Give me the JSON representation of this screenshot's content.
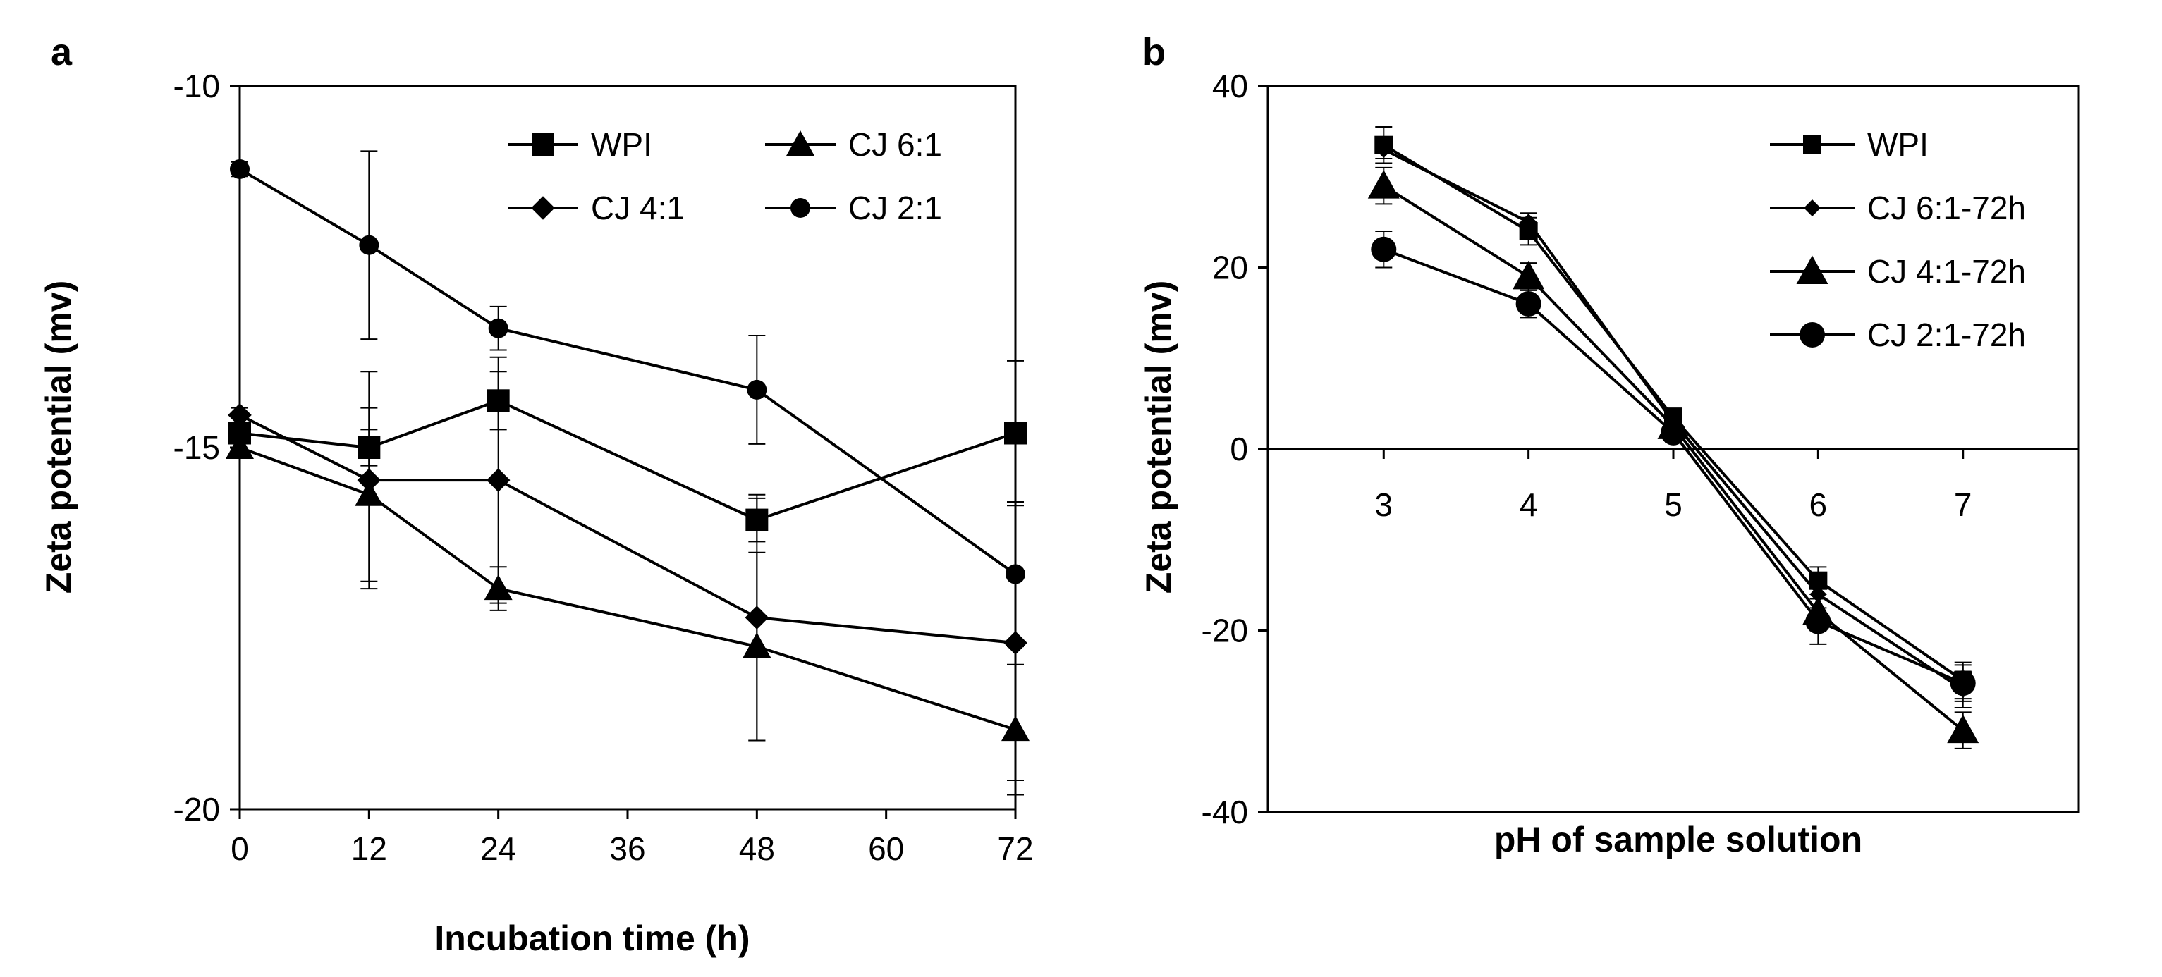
{
  "chart_data": [
    {
      "type": "line",
      "panel": "a",
      "xlabel": "Incubation time (h)",
      "ylabel": "Zeta potential (mv)",
      "xlim": [
        0,
        72
      ],
      "ylim": [
        -20,
        -10
      ],
      "x_ticks": [
        0,
        12,
        24,
        36,
        48,
        60,
        72
      ],
      "y_ticks": [
        -10,
        -15,
        -20
      ],
      "grid": false,
      "legend": {
        "placement": "top-right",
        "columns": 2
      },
      "x": [
        0,
        12,
        24,
        48,
        72
      ],
      "series": [
        {
          "name": "WPI",
          "marker": "square",
          "values": [
            -14.8,
            -15.0,
            -14.35,
            -16.0,
            -14.8
          ],
          "errors": [
            0.1,
            0.25,
            0.4,
            0.3,
            1.0
          ]
        },
        {
          "name": "CJ 6:1",
          "marker": "triangle",
          "values": [
            -15.0,
            -15.65,
            -16.95,
            -17.75,
            -18.9
          ],
          "errors": [
            0.1,
            1.2,
            0.3,
            1.3,
            0.9
          ]
        },
        {
          "name": "CJ 4:1",
          "marker": "diamond",
          "values": [
            -14.55,
            -15.45,
            -15.45,
            -17.35,
            -17.7
          ],
          "errors": [
            0.1,
            1.5,
            1.7,
            1.7,
            1.9
          ]
        },
        {
          "name": "CJ 2:1",
          "marker": "circle",
          "values": [
            -11.15,
            -12.2,
            -13.35,
            -14.2,
            -16.75
          ],
          "errors": [
            0.1,
            1.3,
            0.3,
            0.75,
            1.0
          ]
        }
      ]
    },
    {
      "type": "line",
      "panel": "b",
      "xlabel": "pH of sample solution",
      "ylabel": "Zeta potential (mv)",
      "xlim": [
        2.2,
        7.8
      ],
      "ylim": [
        -40,
        40
      ],
      "x_ticks": [
        3,
        4,
        5,
        6,
        7
      ],
      "y_ticks": [
        40,
        20,
        0,
        -20,
        -40
      ],
      "grid": false,
      "legend": {
        "placement": "top-right",
        "columns": 1
      },
      "x": [
        3,
        4,
        5,
        6,
        7
      ],
      "series": [
        {
          "name": "WPI",
          "marker": "square",
          "values": [
            33.5,
            24.0,
            3.5,
            -14.5,
            -25.5
          ],
          "errors": [
            2.0,
            1.5,
            1.0,
            1.5,
            2.0
          ]
        },
        {
          "name": "CJ 6:1-72h",
          "marker": "diamond",
          "values": [
            33.0,
            25.0,
            3.0,
            -16.0,
            -26.5
          ],
          "errors": [
            1.0,
            1.0,
            1.0,
            1.5,
            2.0
          ]
        },
        {
          "name": "CJ 4:1-72h",
          "marker": "triangle",
          "values": [
            29.0,
            19.0,
            2.5,
            -18.0,
            -31.0
          ],
          "errors": [
            2.0,
            1.5,
            1.0,
            2.0,
            2.0
          ]
        },
        {
          "name": "CJ 2:1-72h",
          "marker": "circle",
          "values": [
            22.0,
            16.0,
            1.8,
            -19.0,
            -25.8
          ],
          "errors": [
            2.0,
            1.5,
            1.0,
            2.5,
            2.0
          ]
        }
      ]
    }
  ]
}
